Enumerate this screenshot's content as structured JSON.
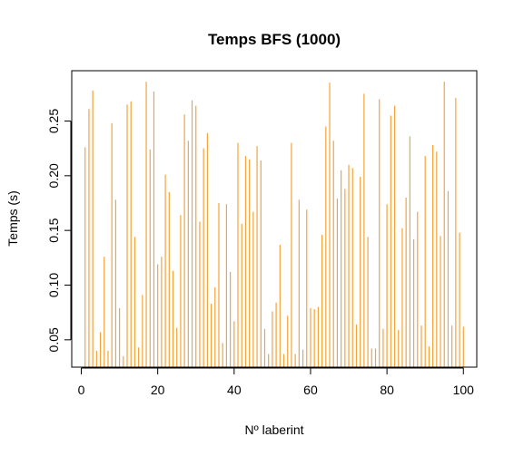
{
  "chart_data": {
    "type": "bar",
    "title": "Temps BFS (1000)",
    "xlabel": "Nº laberint",
    "ylabel": "Temps (s)",
    "xlim": [
      -2.5,
      103.5
    ],
    "ylim": [
      0.025,
      0.296
    ],
    "x_ticks": [
      0,
      20,
      40,
      60,
      80,
      100
    ],
    "y_ticks": [
      0.05,
      0.1,
      0.15,
      0.2,
      0.25
    ],
    "y_tick_labels": [
      "0.05",
      "0.10",
      "0.15",
      "0.20",
      "0.25"
    ],
    "x_tick_labels": [
      "0",
      "20",
      "40",
      "60",
      "80",
      "100"
    ],
    "grid": false,
    "series_color": "#F5A33B",
    "x": [
      1,
      2,
      3,
      4,
      5,
      6,
      7,
      8,
      9,
      10,
      11,
      12,
      13,
      14,
      15,
      16,
      17,
      18,
      19,
      20,
      21,
      22,
      23,
      24,
      25,
      26,
      27,
      28,
      29,
      30,
      31,
      32,
      33,
      34,
      35,
      36,
      37,
      38,
      39,
      40,
      41,
      42,
      43,
      44,
      45,
      46,
      47,
      48,
      49,
      50,
      51,
      52,
      53,
      54,
      55,
      56,
      57,
      58,
      59,
      60,
      61,
      62,
      63,
      64,
      65,
      66,
      67,
      68,
      69,
      70,
      71,
      72,
      73,
      74,
      75,
      76,
      77,
      78,
      79,
      80,
      81,
      82,
      83,
      84,
      85,
      86,
      87,
      88,
      89,
      90,
      91,
      92,
      93,
      94,
      95,
      96,
      97,
      98,
      99,
      100
    ],
    "values": [
      0.226,
      0.261,
      0.278,
      0.04,
      0.057,
      0.126,
      0.04,
      0.248,
      0.178,
      0.079,
      0.035,
      0.265,
      0.268,
      0.144,
      0.043,
      0.091,
      0.286,
      0.224,
      0.277,
      0.119,
      0.126,
      0.201,
      0.185,
      0.113,
      0.061,
      0.164,
      0.256,
      0.232,
      0.269,
      0.264,
      0.158,
      0.225,
      0.239,
      0.083,
      0.098,
      0.175,
      0.047,
      0.174,
      0.112,
      0.067,
      0.23,
      0.156,
      0.218,
      0.215,
      0.167,
      0.227,
      0.214,
      0.06,
      0.037,
      0.076,
      0.084,
      0.137,
      0.037,
      0.072,
      0.23,
      0.037,
      0.178,
      0.041,
      0.169,
      0.079,
      0.078,
      0.08,
      0.146,
      0.245,
      0.285,
      0.232,
      0.179,
      0.205,
      0.188,
      0.21,
      0.207,
      0.064,
      0.199,
      0.275,
      0.144,
      0.042,
      0.042,
      0.27,
      0.06,
      0.174,
      0.255,
      0.264,
      0.059,
      0.152,
      0.18,
      0.236,
      0.142,
      0.167,
      0.063,
      0.218,
      0.044,
      0.228,
      0.222,
      0.145,
      0.286,
      0.186,
      0.063,
      0.271,
      0.148,
      0.062
    ]
  }
}
